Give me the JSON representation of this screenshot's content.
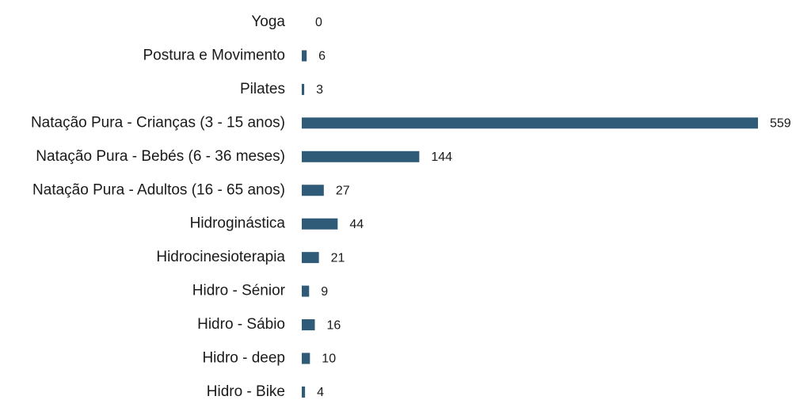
{
  "chart_data": {
    "type": "bar",
    "orientation": "horizontal",
    "categories": [
      "Yoga",
      "Postura e Movimento",
      "Pilates",
      "Natação Pura - Crianças (3 - 15 anos)",
      "Natação Pura - Bebés (6 - 36 meses)",
      "Natação Pura - Adultos (16 - 65 anos)",
      "Hidroginástica",
      "Hidrocinesioterapia",
      "Hidro - Sénior",
      "Hidro - Sábio",
      "Hidro - deep",
      "Hidro - Bike"
    ],
    "values": [
      0,
      6,
      3,
      559,
      144,
      27,
      44,
      21,
      9,
      16,
      10,
      4
    ],
    "color": "#2f5b78"
  }
}
